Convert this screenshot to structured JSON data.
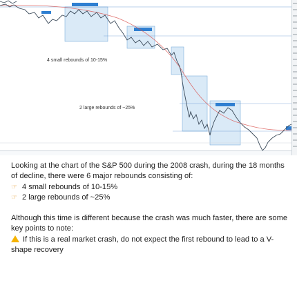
{
  "chart": {
    "annotation_small": "4 small rebounds of 10-15%",
    "annotation_large": "2 large rebounds of ~25%",
    "colors": {
      "price": "#3b4a5a",
      "highlight_fill": "#bcd8f0",
      "highlight_border": "#7fb0dc",
      "moving_average": "#d9534f",
      "guide_line": "#3a78c2",
      "breakout_label": "#2f7fd1"
    }
  },
  "message": {
    "intro": "Looking at the chart of the S&P 500 during the 2008 crash, during the 18 months of decline, there were 6 major rebounds consisting of:",
    "bullets": [
      {
        "icon": "pointing-hand-icon",
        "text": "4 small rebounds of 10-15%"
      },
      {
        "icon": "pointing-hand-icon",
        "text": "2 large rebounds of ~25%"
      }
    ],
    "note": "Although this time is different because the crash was much faster, there are some key points to note:",
    "warning": {
      "icon": "warning-icon",
      "text": "If this is a real market crash, do not expect the first rebound to lead to a V-shape recovery"
    }
  }
}
